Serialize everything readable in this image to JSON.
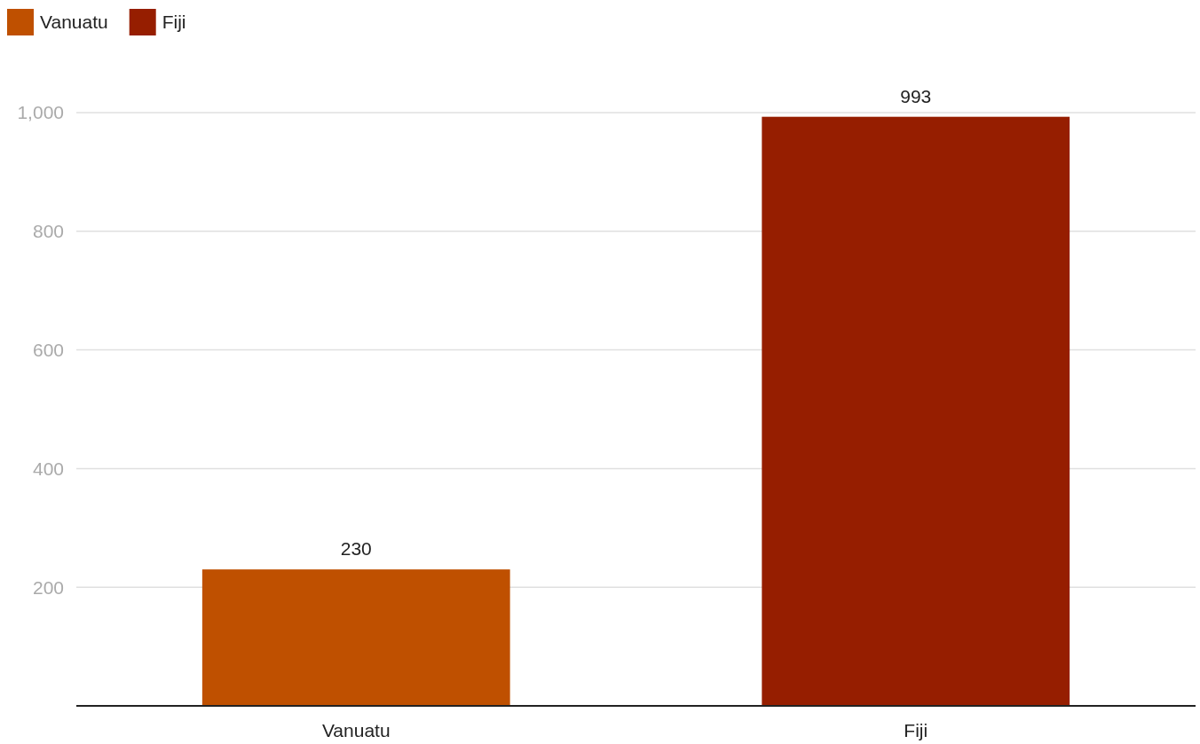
{
  "chart_data": {
    "type": "bar",
    "categories": [
      "Vanuatu",
      "Fiji"
    ],
    "series": [
      {
        "name": "Vanuatu",
        "color": "#bf5000",
        "values": [
          230,
          null
        ]
      },
      {
        "name": "Fiji",
        "color": "#961e00",
        "values": [
          null,
          993
        ]
      }
    ],
    "stacked": true,
    "ylim": [
      0,
      1000
    ],
    "yticks": [
      200,
      400,
      600,
      800,
      {
        "value": 1000,
        "label": "1,000"
      }
    ],
    "grid": "y",
    "legend": "top left",
    "data_labels": true
  }
}
